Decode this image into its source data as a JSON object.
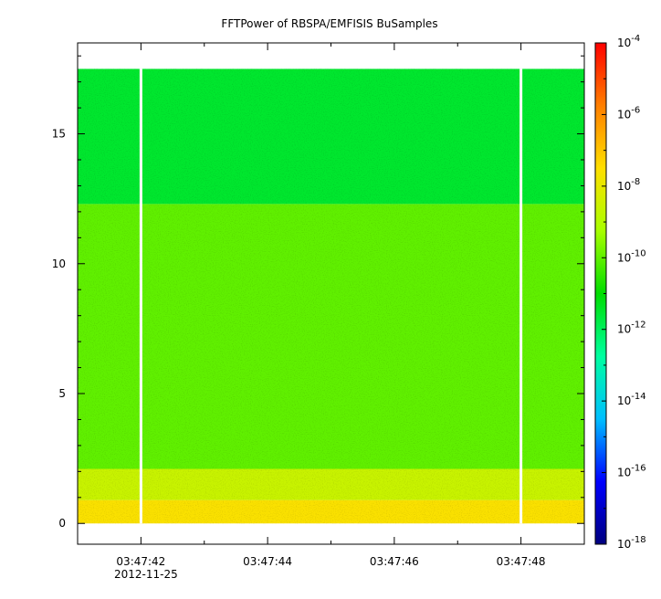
{
  "chart_data": {
    "type": "heatmap",
    "title": "FFTPower of RBSPA/EMFISIS  BuSamples",
    "xlabel": "",
    "ylabel": "",
    "x_tick_labels": [
      "03:47:42",
      "03:47:44",
      "03:47:46",
      "03:47:48"
    ],
    "x_tick_seconds": [
      42,
      44,
      46,
      48
    ],
    "x_date_label": "2012-11-25",
    "xlim_seconds": [
      41.0,
      49.0
    ],
    "y_ticks": [
      0,
      5,
      10,
      15
    ],
    "ylim": [
      -0.8,
      18.5
    ],
    "data_y_range": [
      0,
      17.5
    ],
    "gap_times_seconds": [
      42.0,
      48.0
    ],
    "bands": [
      {
        "y_from": 0.0,
        "y_to": 0.9,
        "log10_power": -7.6
      },
      {
        "y_from": 0.9,
        "y_to": 2.1,
        "log10_power": -8.6
      },
      {
        "y_from": 2.1,
        "y_to": 12.3,
        "log10_power": -10.0
      },
      {
        "y_from": 12.3,
        "y_to": 17.5,
        "log10_power": -11.5
      }
    ],
    "colorbar": {
      "scale": "log",
      "range": [
        1e-18,
        0.0001
      ],
      "tick_exponents": [
        -4,
        -6,
        -8,
        -10,
        -12,
        -14,
        -16,
        -18
      ],
      "tick_base": "10",
      "colors": [
        "#00007f",
        "#0000ff",
        "#00bfff",
        "#00ffa0",
        "#00dd00",
        "#a8ff00",
        "#ffdf00",
        "#ff7f00",
        "#ff0000"
      ]
    },
    "grid": false
  }
}
